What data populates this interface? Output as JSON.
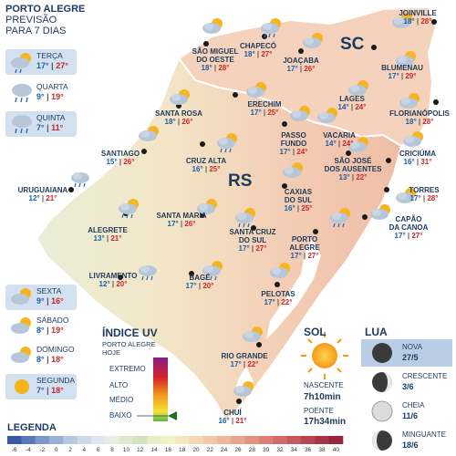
{
  "header": {
    "city": "PORTO ALEGRE",
    "line2": "PREVISÃO",
    "line3": "PARA 7 DIAS"
  },
  "forecast": [
    {
      "day": "TERÇA",
      "min": "17°",
      "max": "27°",
      "icon": "sun-cloud-rain-icon"
    },
    {
      "day": "QUARTA",
      "min": "9°",
      "max": "19°",
      "icon": "cloud-rain-icon"
    },
    {
      "day": "QUINTA",
      "min": "7°",
      "max": "11°",
      "icon": "cloud-rain-icon"
    },
    {
      "day": "SEXTA",
      "min": "9°",
      "max": "16°",
      "icon": "sun-cloud-icon"
    },
    {
      "day": "SÁBADO",
      "min": "8°",
      "max": "19°",
      "icon": "sun-cloud-icon"
    },
    {
      "day": "DOMINGO",
      "min": "8°",
      "max": "18°",
      "icon": "sun-cloud-icon"
    },
    {
      "day": "SEGUNDA",
      "min": "7°",
      "max": "18°",
      "icon": "sun-icon"
    }
  ],
  "regions": {
    "sc": "SC",
    "rs": "RS"
  },
  "cities": [
    {
      "name": "JOINVILLE",
      "min": "18°",
      "max": "28°"
    },
    {
      "name": "SÃO MIGUEL DO OESTE",
      "min": "18°",
      "max": "28°"
    },
    {
      "name": "CHAPECÓ",
      "min": "18°",
      "max": "27°"
    },
    {
      "name": "JOAÇABA",
      "min": "17°",
      "max": "26°"
    },
    {
      "name": "BLUMENAU",
      "min": "17°",
      "max": "29°"
    },
    {
      "name": "LAGES",
      "min": "14°",
      "max": "24°"
    },
    {
      "name": "FLORIANÓPOLIS",
      "min": "18°",
      "max": "28°"
    },
    {
      "name": "SANTA ROSA",
      "min": "18°",
      "max": "26°"
    },
    {
      "name": "ERECHIM",
      "min": "17°",
      "max": "25°"
    },
    {
      "name": "PASSO FUNDO",
      "min": "17°",
      "max": "24°"
    },
    {
      "name": "VACARIA",
      "min": "14°",
      "max": "24°"
    },
    {
      "name": "SANTIAGO",
      "min": "15°",
      "max": "26°"
    },
    {
      "name": "CRUZ ALTA",
      "min": "16°",
      "max": "25°"
    },
    {
      "name": "SÃO JOSÉ DOS AUSENTES",
      "min": "13°",
      "max": "22°"
    },
    {
      "name": "CRICIÚMA",
      "min": "16°",
      "max": "31°"
    },
    {
      "name": "URUGUAIANA",
      "min": "12°",
      "max": "21°"
    },
    {
      "name": "CAXIAS DO SUL",
      "min": "16°",
      "max": "25°"
    },
    {
      "name": "TORRES",
      "min": "17°",
      "max": "28°"
    },
    {
      "name": "ALEGRETE",
      "min": "13°",
      "max": "21°"
    },
    {
      "name": "SANTA MARIA",
      "min": "17°",
      "max": "26°"
    },
    {
      "name": "SANTA CRUZ DO SUL",
      "min": "17°",
      "max": "27°"
    },
    {
      "name": "PORTO ALEGRE",
      "min": "17°",
      "max": "27°"
    },
    {
      "name": "CAPÃO DA CANOA",
      "min": "17°",
      "max": "27°"
    },
    {
      "name": "LIVRAMENTO",
      "min": "12°",
      "max": "20°"
    },
    {
      "name": "BAGÉ",
      "min": "17°",
      "max": "20°"
    },
    {
      "name": "PELOTAS",
      "min": "17°",
      "max": "22°"
    },
    {
      "name": "RIO GRANDE",
      "min": "17°",
      "max": "22°"
    },
    {
      "name": "CHUÍ",
      "min": "16°",
      "max": "21°"
    }
  ],
  "uv": {
    "title": "ÍNDICE UV",
    "subtitle1": "PORTO ALEGRE",
    "subtitle2": "HOJE",
    "levels": [
      "EXTREMO",
      "ALTO",
      "MÉDIO",
      "BAIXO"
    ],
    "current": "BAIXO"
  },
  "sun": {
    "title": "SOL",
    "rise_label": "NASCENTE",
    "rise": "7h10min",
    "set_label": "POENTE",
    "set": "17h34min"
  },
  "moon": {
    "title": "LUA",
    "phases": [
      {
        "name": "NOVA",
        "date": "27/5"
      },
      {
        "name": "CRESCENTE",
        "date": "3/6"
      },
      {
        "name": "CHEIA",
        "date": "11/6"
      },
      {
        "name": "MINGUANTE",
        "date": "18/6"
      }
    ]
  },
  "legend": {
    "title": "LEGENDA",
    "values": [
      "-6",
      "-4",
      "-2",
      "0",
      "2",
      "4",
      "6",
      "8",
      "10",
      "12",
      "14",
      "16",
      "18",
      "20",
      "22",
      "24",
      "26",
      "28",
      "30",
      "32",
      "34",
      "36",
      "38",
      "40"
    ],
    "colors": [
      "#3a58a8",
      "#5a78b8",
      "#7a98c8",
      "#9ab2d6",
      "#b6c9e2",
      "#cdd9ea",
      "#dfe6ee",
      "#e6efe3",
      "#dce9cc",
      "#d2e3c0",
      "#e8eec6",
      "#f3f0c8",
      "#f7e6bf",
      "#f5d7b4",
      "#f2c7a8",
      "#eeb79c",
      "#e9a48f",
      "#e39282",
      "#dc8076",
      "#d26c6a",
      "#c5585e",
      "#b84652",
      "#a93446",
      "#99243b"
    ]
  }
}
